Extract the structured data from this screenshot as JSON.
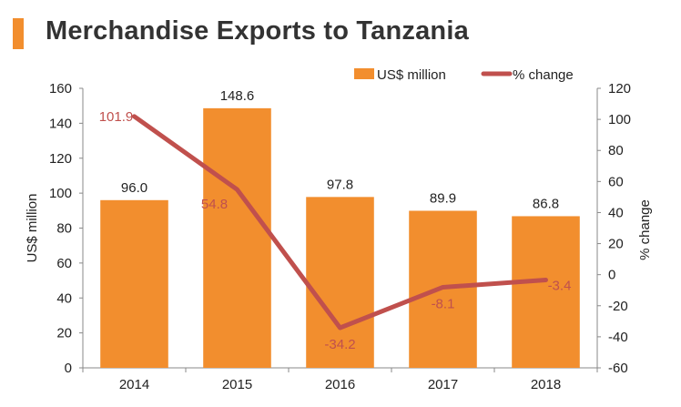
{
  "colors": {
    "bar": "#F28E2E",
    "line": "#C0504D",
    "title_bar": "#F28E2E",
    "axis": "#888888"
  },
  "chart_data": {
    "type": "bar+line",
    "title": "Merchandise Exports to Tanzania",
    "categories": [
      "2014",
      "2015",
      "2016",
      "2017",
      "2018"
    ],
    "series": [
      {
        "name": "US$ million",
        "type": "bar",
        "axis": "left",
        "values": [
          96.0,
          148.6,
          97.8,
          89.9,
          86.8
        ],
        "labels": [
          "96.0",
          "148.6",
          "97.8",
          "89.9",
          "86.8"
        ]
      },
      {
        "name": "% change",
        "type": "line",
        "axis": "right",
        "values": [
          101.9,
          54.8,
          -34.2,
          -8.1,
          -3.4
        ],
        "labels": [
          "101.9",
          "54.8",
          "-34.2",
          "-8.1",
          "-3.4"
        ]
      }
    ],
    "ylabel_left": "US$ million",
    "ylabel_right": "% change",
    "ylim_left": [
      0,
      160
    ],
    "ylim_right": [
      -60,
      120
    ],
    "yticks_left": [
      "0",
      "20",
      "40",
      "60",
      "80",
      "100",
      "120",
      "140",
      "160"
    ],
    "yticks_right": [
      "-60",
      "-40",
      "-20",
      "0",
      "20",
      "40",
      "60",
      "80",
      "100",
      "120"
    ],
    "legend": [
      "US$ million",
      "% change"
    ],
    "legend_position": "top-right"
  }
}
